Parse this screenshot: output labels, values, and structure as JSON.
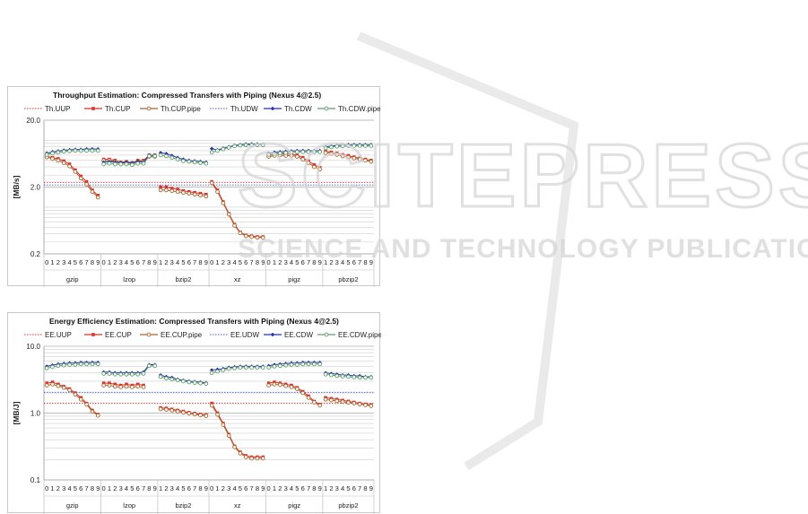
{
  "watermark": {
    "title": "SCITEPRESS",
    "subtitle": "SCIENCE AND TECHNOLOGY PUBLICATIONS"
  },
  "chart_data": [
    {
      "type": "line",
      "title": "Throughput Estimation: Compressed Transfers with Piping (Nexus 4@2.5)",
      "ylabel": "[MB/s]",
      "yscale": "log",
      "ylim": [
        0.2,
        20
      ],
      "yticks": [
        "20.0",
        "2.0",
        "0.2"
      ],
      "groups": [
        {
          "name": "gzip",
          "levels": [
            "0",
            "1",
            "2",
            "3",
            "4",
            "5",
            "6",
            "7",
            "8",
            "9"
          ]
        },
        {
          "name": "lzop",
          "levels": [
            "0",
            "1",
            "2",
            "3",
            "4",
            "5",
            "6",
            "7",
            "8",
            "9"
          ]
        },
        {
          "name": "bzip2",
          "levels": [
            "1",
            "2",
            "3",
            "4",
            "5",
            "6",
            "7",
            "8",
            "9"
          ]
        },
        {
          "name": "xz",
          "levels": [
            "0",
            "1",
            "2",
            "3",
            "4",
            "5",
            "6",
            "7",
            "8",
            "9"
          ]
        },
        {
          "name": "pigz",
          "levels": [
            "0",
            "1",
            "2",
            "3",
            "4",
            "5",
            "6",
            "7",
            "8",
            "9"
          ]
        },
        {
          "name": "pbzip2",
          "levels": [
            "1",
            "2",
            "3",
            "4",
            "5",
            "6",
            "7",
            "8",
            "9"
          ]
        }
      ],
      "legend_position": "top",
      "series": [
        {
          "name": "Th.UUP",
          "color": "#e0302a",
          "style": "dotted",
          "constant": 2.35
        },
        {
          "name": "Th.CUP",
          "color": "#e0302a",
          "marker": "square",
          "groups": [
            [
              5.8,
              5.5,
              5.3,
              4.9,
              4.4,
              3.6,
              2.9,
              2.4,
              1.8,
              1.5
            ],
            [
              5.2,
              5.2,
              5.0,
              4.7,
              4.8,
              4.6,
              5.0,
              5.0,
              6.0,
              6.0
            ],
            [
              2.0,
              2.0,
              1.9,
              1.85,
              1.75,
              1.7,
              1.65,
              1.6,
              1.55
            ],
            [
              2.4,
              1.8,
              1.2,
              0.8,
              0.55,
              0.42,
              0.38,
              0.37,
              0.36,
              0.36
            ],
            [
              6.0,
              6.2,
              6.3,
              6.2,
              6.2,
              6.0,
              5.5,
              4.9,
              4.3,
              3.9
            ],
            [
              6.8,
              6.6,
              6.4,
              6.1,
              5.9,
              5.6,
              5.4,
              5.2,
              5.0
            ]
          ]
        },
        {
          "name": "Th.CUP.pipe",
          "color": "#a9642e",
          "marker": "circle",
          "groups": [
            [
              5.6,
              5.3,
              5.0,
              4.6,
              4.1,
              3.4,
              2.7,
              2.2,
              1.7,
              1.4
            ],
            [
              5.0,
              5.0,
              4.8,
              4.6,
              4.6,
              4.5,
              4.8,
              4.8,
              5.7,
              5.7
            ],
            [
              1.8,
              1.8,
              1.75,
              1.7,
              1.65,
              1.6,
              1.55,
              1.5,
              1.45
            ],
            [
              2.3,
              1.7,
              1.15,
              0.78,
              0.53,
              0.41,
              0.37,
              0.36,
              0.35,
              0.35
            ],
            [
              5.7,
              5.9,
              6.0,
              5.9,
              5.9,
              5.7,
              5.2,
              4.6,
              4.0,
              3.7
            ],
            [
              6.5,
              6.3,
              6.1,
              5.8,
              5.6,
              5.4,
              5.2,
              5.0,
              4.8
            ]
          ]
        },
        {
          "name": "Th.UDW",
          "color": "#3b5cc8",
          "style": "dotted",
          "constant": 2.15
        },
        {
          "name": "Th.CDW",
          "color": "#2433a8",
          "marker": "diamond",
          "groups": [
            [
              6.4,
              6.7,
              6.9,
              7.1,
              7.2,
              7.3,
              7.3,
              7.4,
              7.4,
              7.4
            ],
            [
              4.7,
              4.8,
              4.7,
              4.6,
              4.7,
              4.6,
              4.8,
              4.7,
              6.0,
              6.0
            ],
            [
              6.5,
              6.3,
              5.9,
              5.5,
              5.2,
              5.0,
              4.9,
              4.8,
              4.7
            ],
            [
              7.5,
              7.2,
              7.6,
              8.0,
              8.4,
              8.6,
              8.8,
              8.8,
              8.8,
              8.7
            ],
            [
              6.4,
              6.6,
              6.7,
              6.8,
              6.9,
              7.0,
              7.0,
              7.0,
              7.0,
              7.0
            ],
            [
              8.0,
              8.2,
              8.4,
              8.5,
              8.6,
              8.6,
              8.6,
              8.6,
              8.6
            ]
          ]
        },
        {
          "name": "Th.CDW.pipe",
          "color": "#5f9e6c",
          "marker": "circle",
          "groups": [
            [
              6.1,
              6.4,
              6.6,
              6.8,
              6.9,
              7.0,
              7.0,
              7.0,
              7.0,
              7.0
            ],
            [
              4.4,
              4.5,
              4.4,
              4.4,
              4.4,
              4.3,
              4.5,
              4.5,
              5.8,
              5.8
            ],
            [
              6.0,
              5.8,
              5.5,
              5.2,
              4.9,
              4.8,
              4.7,
              4.6,
              4.5
            ],
            [
              6.6,
              7.0,
              7.4,
              7.8,
              8.2,
              8.4,
              8.5,
              8.5,
              8.5,
              8.5
            ],
            [
              6.1,
              6.3,
              6.4,
              6.5,
              6.6,
              6.7,
              6.7,
              6.7,
              6.7,
              6.7
            ],
            [
              7.7,
              7.9,
              8.1,
              8.2,
              8.3,
              8.3,
              8.3,
              8.3,
              8.3
            ]
          ]
        }
      ]
    },
    {
      "type": "line",
      "title": "Energy Efficiency Estimation: Compressed Transfers with Piping (Nexus 4@2.5)",
      "ylabel": "[MB/J]",
      "yscale": "log",
      "ylim": [
        0.1,
        10
      ],
      "yticks": [
        "10.0",
        "1.0",
        "0.1"
      ],
      "groups": [
        {
          "name": "gzip",
          "levels": [
            "0",
            "1",
            "2",
            "3",
            "4",
            "5",
            "6",
            "7",
            "8",
            "9"
          ]
        },
        {
          "name": "lzop",
          "levels": [
            "0",
            "1",
            "2",
            "3",
            "4",
            "5",
            "6",
            "7",
            "8",
            "9"
          ]
        },
        {
          "name": "bzip2",
          "levels": [
            "1",
            "2",
            "3",
            "4",
            "5",
            "6",
            "7",
            "8",
            "9"
          ]
        },
        {
          "name": "xz",
          "levels": [
            "0",
            "1",
            "2",
            "3",
            "4",
            "5",
            "6",
            "7",
            "8",
            "9"
          ]
        },
        {
          "name": "pigz",
          "levels": [
            "0",
            "1",
            "2",
            "3",
            "4",
            "5",
            "6",
            "7",
            "8",
            "9"
          ]
        },
        {
          "name": "pbzip2",
          "levels": [
            "1",
            "2",
            "3",
            "4",
            "5",
            "6",
            "7",
            "8",
            "9"
          ]
        }
      ],
      "legend_position": "top",
      "series": [
        {
          "name": "EE.UUP",
          "color": "#e0302a",
          "style": "dotted",
          "constant": 1.4
        },
        {
          "name": "EE.CUP",
          "color": "#e0302a",
          "marker": "square",
          "groups": [
            [
              2.8,
              2.9,
              2.7,
              2.5,
              2.3,
              2.0,
              1.7,
              1.4,
              1.1,
              0.95
            ],
            [
              2.8,
              2.8,
              2.7,
              2.6,
              2.7,
              2.6,
              2.7,
              2.6,
              null,
              null
            ],
            [
              1.2,
              1.18,
              1.14,
              1.1,
              1.06,
              1.02,
              0.99,
              0.96,
              0.94
            ],
            [
              1.4,
              1.0,
              0.7,
              0.48,
              0.32,
              0.26,
              0.23,
              0.22,
              0.22,
              0.22
            ],
            [
              2.8,
              2.9,
              2.8,
              2.7,
              2.6,
              2.4,
              2.1,
              1.8,
              1.5,
              1.35
            ],
            [
              1.7,
              1.65,
              1.6,
              1.55,
              1.5,
              1.45,
              1.4,
              1.36,
              1.32
            ]
          ]
        },
        {
          "name": "EE.CUP.pipe",
          "color": "#a9642e",
          "marker": "circle",
          "groups": [
            [
              2.6,
              2.7,
              2.55,
              2.4,
              2.2,
              1.9,
              1.6,
              1.35,
              1.05,
              0.92
            ],
            [
              2.6,
              2.6,
              2.5,
              2.45,
              2.5,
              2.45,
              2.5,
              2.45,
              null,
              null
            ],
            [
              1.15,
              1.13,
              1.1,
              1.06,
              1.02,
              0.99,
              0.96,
              0.93,
              0.91
            ],
            [
              1.3,
              0.95,
              0.67,
              0.46,
              0.31,
              0.25,
              0.22,
              0.21,
              0.21,
              0.21
            ],
            [
              2.6,
              2.7,
              2.65,
              2.55,
              2.45,
              2.3,
              2.0,
              1.7,
              1.45,
              1.3
            ],
            [
              1.6,
              1.56,
              1.52,
              1.48,
              1.44,
              1.4,
              1.36,
              1.32,
              1.28
            ]
          ]
        },
        {
          "name": "EE.UDW",
          "color": "#3b5cc8",
          "style": "dotted",
          "constant": 2.05
        },
        {
          "name": "EE.CDW",
          "color": "#2433a8",
          "marker": "diamond",
          "groups": [
            [
              5.0,
              5.2,
              5.4,
              5.5,
              5.6,
              5.6,
              5.7,
              5.7,
              5.7,
              5.7
            ],
            [
              4.1,
              4.1,
              4.0,
              4.0,
              4.0,
              4.0,
              4.0,
              4.1,
              5.3,
              5.3
            ],
            [
              3.7,
              3.5,
              3.4,
              3.2,
              3.1,
              3.0,
              2.95,
              2.9,
              2.85
            ],
            [
              4.4,
              4.5,
              4.6,
              4.8,
              4.9,
              5.0,
              5.0,
              5.0,
              5.0,
              5.0
            ],
            [
              5.1,
              5.3,
              5.4,
              5.5,
              5.6,
              5.6,
              5.7,
              5.7,
              5.7,
              5.7
            ],
            [
              4.0,
              3.9,
              3.8,
              3.7,
              3.7,
              3.6,
              3.6,
              3.5,
              3.5
            ]
          ]
        },
        {
          "name": "EE.CDW.pipe",
          "color": "#5f9e6c",
          "marker": "circle",
          "groups": [
            [
              4.7,
              4.9,
              5.1,
              5.2,
              5.3,
              5.3,
              5.4,
              5.4,
              5.4,
              5.4
            ],
            [
              3.9,
              3.9,
              3.8,
              3.8,
              3.8,
              3.8,
              3.8,
              3.9,
              5.1,
              5.1
            ],
            [
              3.5,
              3.3,
              3.2,
              3.1,
              3.0,
              2.9,
              2.85,
              2.8,
              2.75
            ],
            [
              4.0,
              4.2,
              4.4,
              4.6,
              4.7,
              4.8,
              4.8,
              4.8,
              4.8,
              4.8
            ],
            [
              4.8,
              5.0,
              5.1,
              5.2,
              5.3,
              5.3,
              5.4,
              5.4,
              5.4,
              5.4
            ],
            [
              3.8,
              3.7,
              3.6,
              3.55,
              3.5,
              3.45,
              3.4,
              3.4,
              3.4
            ]
          ]
        }
      ]
    }
  ]
}
